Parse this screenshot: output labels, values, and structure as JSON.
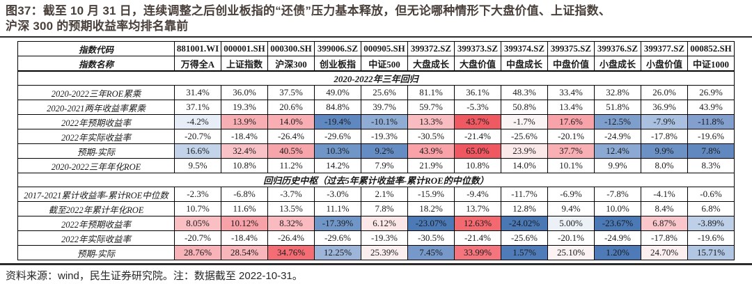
{
  "title": {
    "lines": [
      "图37：截至 10 月 31 日，连续调整之后创业板指的“还债”压力基本释放，但无论哪种情形下大盘价值、上证指数、",
      "沪深 300 的预期收益率均排名靠前"
    ]
  },
  "accent_colors": {
    "title_text": "#4a403b",
    "rule": "#2b2b2b",
    "max_red": "#ee4f58",
    "max_blue": "#4a78b5"
  },
  "table": {
    "code_row": {
      "label": "指数代码",
      "values": [
        "881001.WI",
        "000001.SH",
        "000300.SH",
        "399006.SZ",
        "000905.SH",
        "399372.SZ",
        "399373.SZ",
        "399374.SZ",
        "399375.SZ",
        "399376.SZ",
        "399377.SZ",
        "000852.SH"
      ]
    },
    "name_row": {
      "label": "指数名称",
      "values": [
        "万得全A",
        "上证指数",
        "沪深300",
        "创业板指",
        "中证500",
        "大盘成长",
        "大盘价值",
        "中盘成长",
        "中盘价值",
        "小盘成长",
        "小盘价值",
        "中证1000"
      ]
    },
    "sections": [
      {
        "header": "2020-2022年三年回归",
        "rows": [
          {
            "label": "2020-2022三年ROE累乘",
            "values": [
              "31.4%",
              "36.0%",
              "37.5%",
              "49.0%",
              "25.6%",
              "81.1%",
              "36.1%",
              "48.3%",
              "33.4%",
              "32.8%",
              "26.0%",
              "26.9%"
            ],
            "colors": null
          },
          {
            "label": "2020-2021两年收益率累乘",
            "values": [
              "37.1%",
              "19.3%",
              "20.6%",
              "84.8%",
              "39.7%",
              "59.7%",
              "-5.3%",
              "50.8%",
              "13.4%",
              "51.8%",
              "36.9%",
              "43.9%"
            ],
            "colors": null
          },
          {
            "label": "2022年预期收益率",
            "values": [
              "-4.2%",
              "13.9%",
              "14.0%",
              "-19.4%",
              "-10.1%",
              "13.3%",
              "43.7%",
              "-1.7%",
              "17.6%",
              "-12.5%",
              "-7.9%",
              "-11.8%"
            ],
            "colors": [
              "#e8eef7",
              "#f8afb4",
              "#f8aeb3",
              "#5f88c0",
              "#8facd4",
              "#f9bcc0",
              "#ef5a62",
              "#fbf4f4",
              "#f7a3a9",
              "#7e9ecc",
              "#a9c0e0",
              "#829fcd"
            ]
          },
          {
            "label": "2022年实际收益率",
            "values": [
              "-20.7%",
              "-18.4%",
              "-26.4%",
              "-29.6%",
              "-19.3%",
              "-30.5%",
              "-21.4%",
              "-25.6%",
              "-20.1%",
              "-24.9%",
              "-17.8%",
              "-19.6%"
            ],
            "colors": null
          },
          {
            "label": "预期-实际",
            "values": [
              "16.6%",
              "32.4%",
              "40.5%",
              "10.3%",
              "9.2%",
              "43.9%",
              "65.0%",
              "23.9%",
              "37.7%",
              "12.4%",
              "9.9%",
              "7.8%"
            ],
            "colors": [
              "#c3d4ea",
              "#f9c2c6",
              "#f7a5ab",
              "#7095c7",
              "#668dc3",
              "#f9a2a8",
              "#ef5860",
              "#fbe9ea",
              "#f8b0b5",
              "#8ba9d2",
              "#6c92c5",
              "#6189c0"
            ]
          },
          {
            "label": "2020-2022三年年化ROE",
            "values": [
              "9.5%",
              "10.8%",
              "11.2%",
              "14.2%",
              "7.9%",
              "21.9%",
              "10.8%",
              "14.0%",
              "10.1%",
              "9.9%",
              "8.0%",
              "8.3%"
            ],
            "colors": null
          }
        ]
      },
      {
        "header": "回归历史中枢（过去5年累计收益率-累计ROE的中位数）",
        "rows": [
          {
            "label": "2017-2021累计收益率-累计ROE中位数",
            "values": [
              "-2.3%",
              "-6.8%",
              "-3.7%",
              "-3.0%",
              "2.1%",
              "-15.9%",
              "-9.4%",
              "-11.7%",
              "-6.9%",
              "-7.8%",
              "-4.1%",
              "-0.6%"
            ],
            "colors": null
          },
          {
            "label": "截至2022年累计年化ROE",
            "values": [
              "10.7%",
              "11.6%",
              "13.5%",
              "11.1%",
              "7.8%",
              "18.2%",
              "13.7%",
              "12.8%",
              "9.4%",
              "10.0%",
              "8.4%",
              "6.8%"
            ],
            "colors": null
          },
          {
            "label": "2022年预期收益率",
            "values": [
              "8.05%",
              "10.12%",
              "8.32%",
              "-17.39%",
              "6.12%",
              "-23.07%",
              "12.63%",
              "-24.02%",
              "5.00%",
              "-23.67%",
              "6.87%",
              "-3.89%"
            ],
            "colors": [
              "#f9bfc3",
              "#f7a2a8",
              "#f9bbc0",
              "#7095c7",
              "#fce7e8",
              "#4c7ab7",
              "#f26970",
              "#4a78b5",
              "#ecf1f8",
              "#4b79b6",
              "#f9c7cb",
              "#becfe8"
            ]
          },
          {
            "label": "2022年实际收益率",
            "values": [
              "-20.7%",
              "-18.4%",
              "-26.4%",
              "-29.6%",
              "-19.3%",
              "-30.5%",
              "-21.4%",
              "-25.6%",
              "-20.1%",
              "-24.9%",
              "-17.8%",
              "-19.6%"
            ],
            "colors": null
          },
          {
            "label": "预期-实际",
            "values": [
              "28.76%",
              "28.54%",
              "34.76%",
              "12.25%",
              "25.39%",
              "7.45%",
              "33.99%",
              "1.57%",
              "25.10%",
              "1.20%",
              "24.70%",
              "15.71%"
            ],
            "colors": [
              "#f8b3b8",
              "#f8b5ba",
              "#f46d75",
              "#9cb5d9",
              "#fbeeef",
              "#7799c9",
              "#f4757d",
              "#4f7cb9",
              "#faf2f3",
              "#4e7bb8",
              "#fbeff0",
              "#b0c6e2"
            ]
          }
        ]
      }
    ]
  },
  "footer": {
    "text": "资料来源：wind，民生证券研究院。注：数据截至 2022-10-31。"
  }
}
